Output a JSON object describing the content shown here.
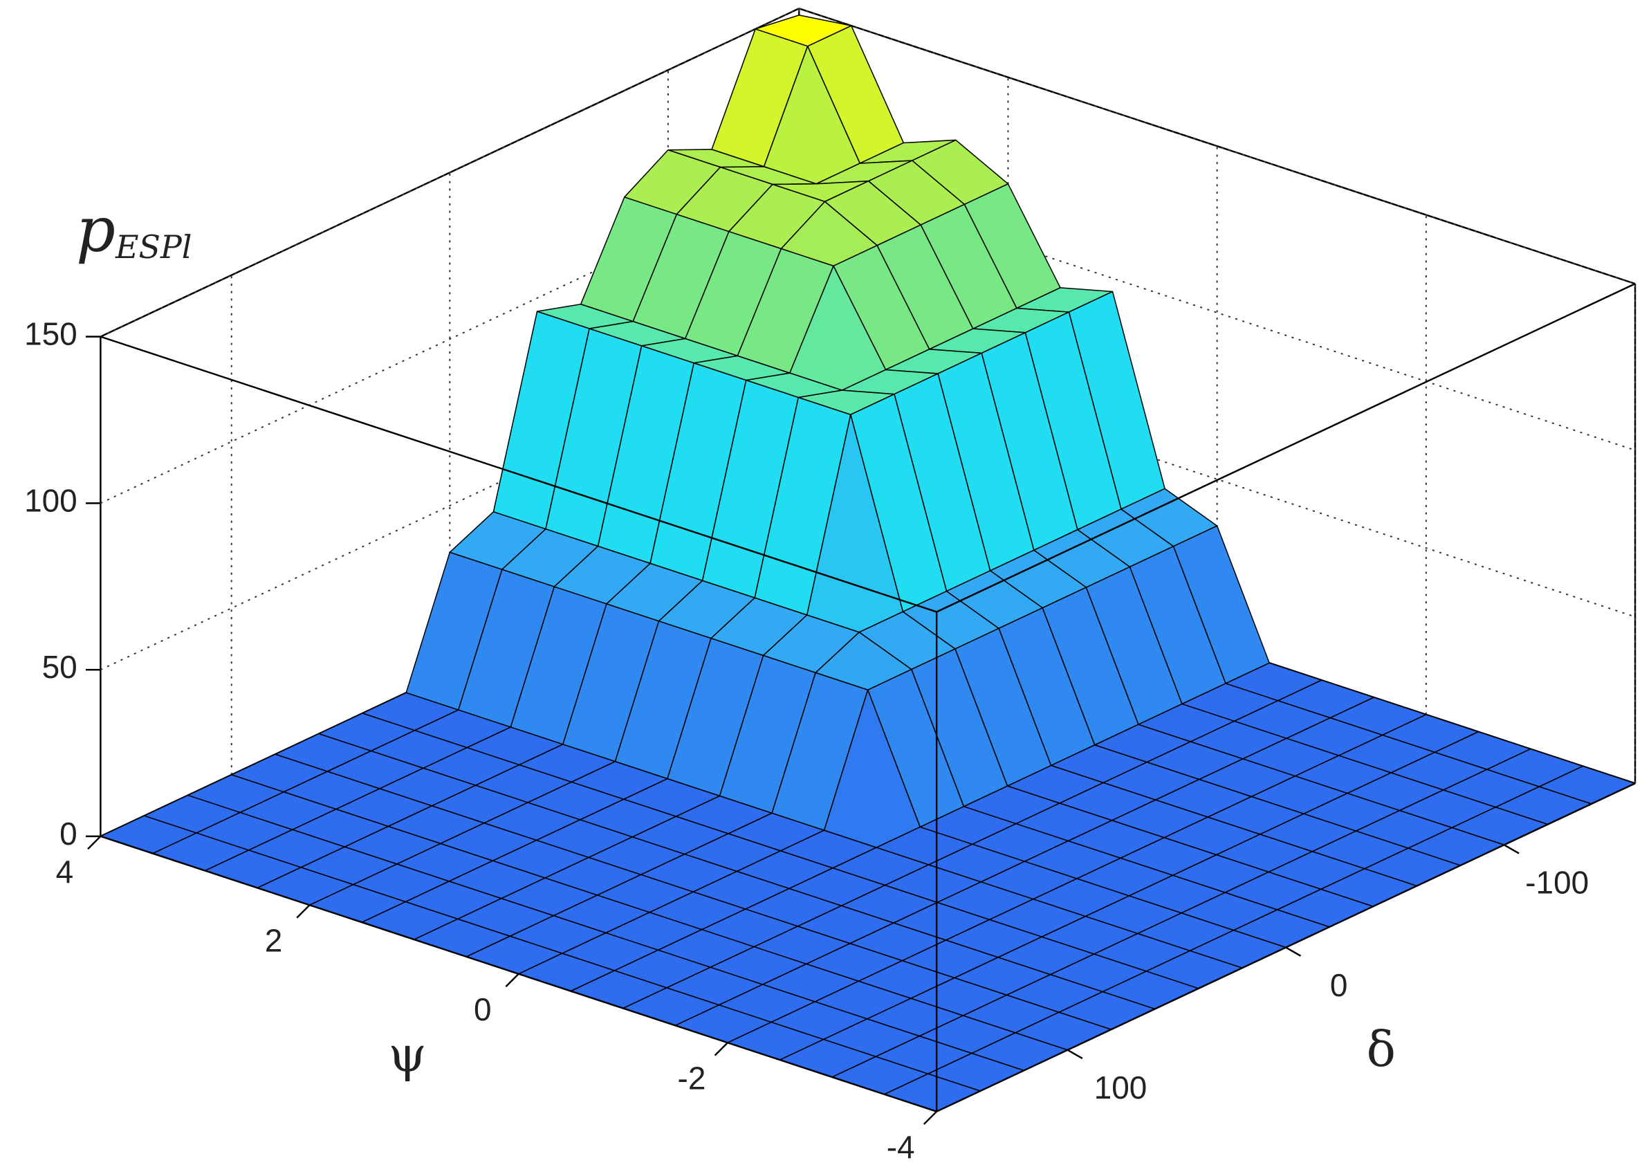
{
  "chart_data": {
    "type": "surface",
    "xlabel": "ψ",
    "ylabel": "δ",
    "zlabel": {
      "base": "p",
      "subscript": "ESPl"
    },
    "x": [
      -4,
      -3.5,
      -3,
      -2.5,
      -2,
      -1.5,
      -1,
      -0.5,
      0,
      0.5,
      1,
      1.5,
      2,
      2.5,
      3,
      3.5,
      4
    ],
    "y": [
      -160,
      -140,
      -120,
      -100,
      -80,
      -60,
      -40,
      -20,
      0,
      20,
      40,
      60,
      80,
      100,
      120,
      140,
      160
    ],
    "z": [
      [
        0,
        0,
        0,
        0,
        0,
        0,
        0,
        0,
        0,
        0,
        0,
        0,
        0,
        0,
        0,
        0,
        0
      ],
      [
        0,
        0,
        0,
        0,
        0,
        0,
        0,
        0,
        0,
        0,
        0,
        0,
        0,
        0,
        0,
        0,
        0
      ],
      [
        0,
        0,
        0,
        0,
        0,
        0,
        0,
        0,
        0,
        0,
        0,
        0,
        0,
        0,
        0,
        0,
        0
      ],
      [
        0,
        0,
        0,
        0,
        0,
        0,
        0,
        0,
        0,
        0,
        0,
        0,
        0,
        0,
        0,
        0,
        0
      ],
      [
        0,
        0,
        0,
        0,
        0,
        0,
        0,
        0,
        0,
        0,
        0,
        0,
        0,
        0,
        0,
        0,
        0
      ],
      [
        0,
        0,
        0,
        0,
        0,
        0,
        0,
        0,
        0,
        0,
        0,
        0,
        0,
        0,
        0,
        0,
        0
      ],
      [
        0,
        0,
        0,
        0,
        0,
        0,
        0,
        0,
        0,
        0,
        0,
        0,
        0,
        0,
        0,
        0,
        0
      ],
      [
        0,
        0,
        0,
        0,
        0,
        0,
        0,
        0,
        0,
        0,
        0,
        0,
        0,
        0,
        0,
        0,
        0
      ],
      [
        36,
        36,
        36,
        36,
        36,
        36,
        36,
        36,
        36,
        0,
        0,
        0,
        0,
        0,
        0,
        0,
        0
      ],
      [
        42,
        42,
        42,
        42,
        42,
        42,
        42,
        42,
        36,
        0,
        0,
        0,
        0,
        0,
        0,
        0,
        0
      ],
      [
        96,
        96,
        96,
        96,
        96,
        96,
        96,
        42,
        36,
        0,
        0,
        0,
        0,
        0,
        0,
        0,
        0
      ],
      [
        92,
        92,
        92,
        92,
        92,
        92,
        96,
        42,
        36,
        0,
        0,
        0,
        0,
        0,
        0,
        0,
        0
      ],
      [
        118,
        118,
        118,
        118,
        118,
        92,
        96,
        42,
        36,
        0,
        0,
        0,
        0,
        0,
        0,
        0,
        0
      ],
      [
        126,
        126,
        126,
        126,
        118,
        92,
        96,
        42,
        36,
        0,
        0,
        0,
        0,
        0,
        0,
        0,
        0
      ],
      [
        120,
        120,
        120,
        126,
        118,
        92,
        96,
        42,
        36,
        0,
        0,
        0,
        0,
        0,
        0,
        0,
        0
      ],
      [
        150,
        150,
        120,
        126,
        118,
        92,
        96,
        42,
        36,
        0,
        0,
        0,
        0,
        0,
        0,
        0,
        0
      ],
      [
        148,
        150,
        120,
        126,
        118,
        92,
        96,
        42,
        36,
        0,
        0,
        0,
        0,
        0,
        0,
        0,
        0
      ]
    ],
    "xlim": [
      -4,
      4
    ],
    "ylim": [
      -160,
      160
    ],
    "zlim": [
      0,
      150
    ],
    "xticks": [
      -4,
      -2,
      0,
      2,
      4
    ],
    "yticks": [
      -100,
      0,
      100
    ],
    "zticks": [
      0,
      50,
      100,
      150
    ],
    "grid": true,
    "colormap": [
      "#2e6cf0",
      "#33a6f2",
      "#1ee8f2",
      "#8ee86c",
      "#ffff00"
    ],
    "edge_color": "#000000"
  }
}
